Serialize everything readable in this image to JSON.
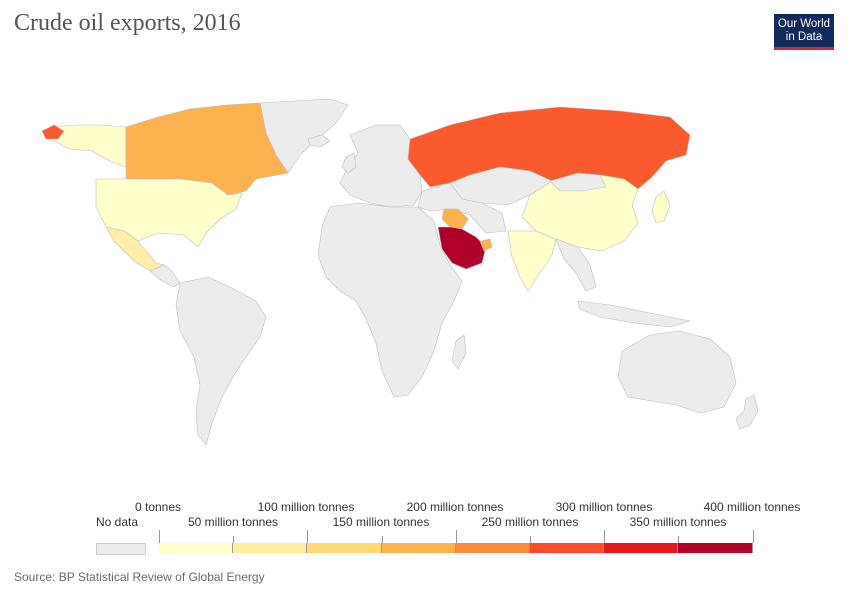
{
  "header": {
    "title": "Crude oil exports, 2016",
    "logo_line1": "Our World",
    "logo_line2": "in Data"
  },
  "map": {
    "colors": {
      "no_data": "#ececec",
      "border": "#bfbfbf",
      "russia": "#fb5a2f",
      "saudi_arabia": "#b0002b",
      "canada": "#fdb14f",
      "iraq": "#fdb14f",
      "uae": "#fdb14f",
      "usa": "#ffffcc",
      "mexico": "#ffedaa",
      "china": "#ffffcc",
      "india": "#ffffcc",
      "japan": "#ffffcc",
      "alaska": "#ffffcc",
      "greenland": "#ececec"
    }
  },
  "legend": {
    "no_data_label": "No data",
    "labels_top": [
      "0 tonnes",
      "100 million tonnes",
      "200 million tonnes",
      "300 million tonnes",
      "400 million tonnes"
    ],
    "labels_bottom": [
      "50 million tonnes",
      "150 million tonnes",
      "250 million tonnes",
      "350 million tonnes"
    ],
    "bin_colors": [
      "#ffffcc",
      "#ffeda0",
      "#fed976",
      "#feb24c",
      "#fd8d3c",
      "#fc4e2a",
      "#e31a1c",
      "#b10026"
    ]
  },
  "footer": {
    "source": "Source: BP Statistical Review of Global Energy"
  }
}
